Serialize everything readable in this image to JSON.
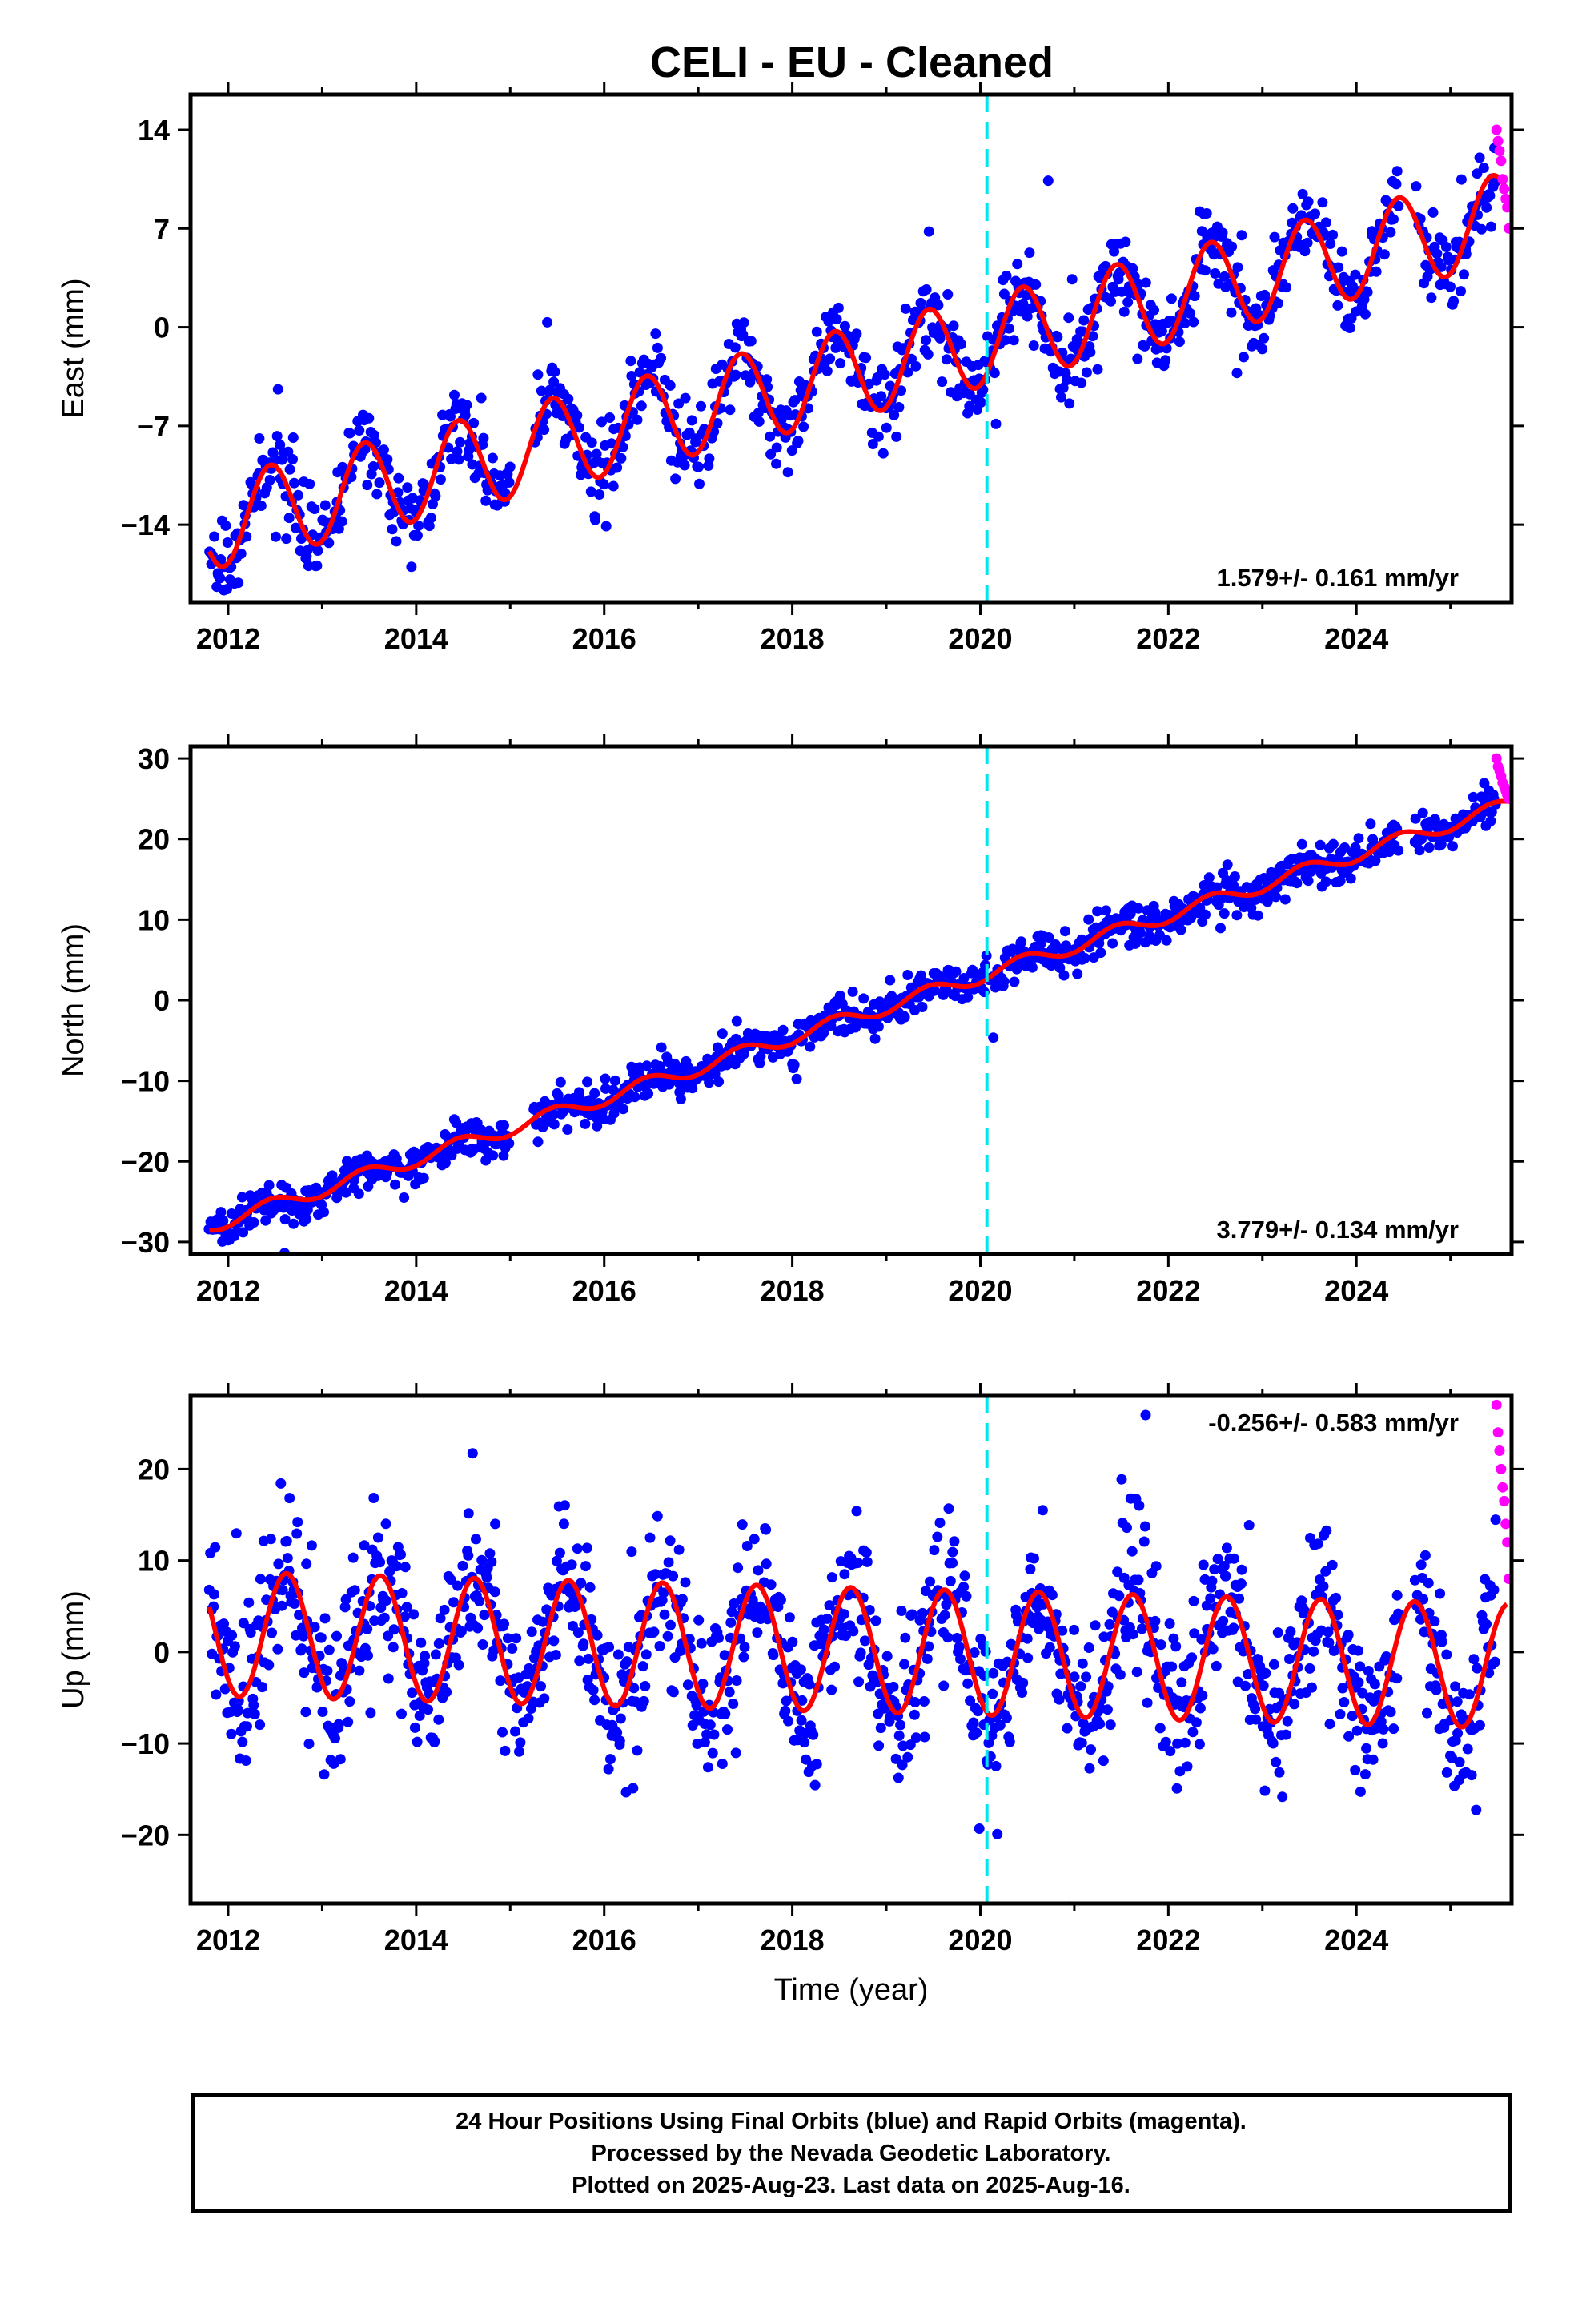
{
  "chart_data": [
    {
      "type": "scatter",
      "title": "CELI  - EU - Cleaned",
      "ylabel": "East (mm)",
      "xlim": [
        2011.6,
        2025.65
      ],
      "ylim": [
        -19.5,
        16.5
      ],
      "yticks": [
        -14,
        -7,
        0,
        7,
        14
      ],
      "xticks": [
        2012,
        2014,
        2016,
        2018,
        2020,
        2022,
        2024
      ],
      "rate": "1.579+/- 0.161 mm/yr",
      "rate_position": "bottom-right",
      "equipment_change_line": 2020.07,
      "model": {
        "start": 2011.8,
        "end": 2025.6,
        "offset_at_start": -14.0,
        "rate": 1.579,
        "annual_amplitude": 3.2,
        "peak_phase": 0.45
      },
      "series": [
        {
          "name": "Final Orbits",
          "color": "#0000ff",
          "x_range": [
            2011.8,
            2025.48
          ],
          "scatter_sd": 1.4,
          "n": 1100
        },
        {
          "name": "Rapid Orbits",
          "color": "#ff00ff",
          "x_range": [
            2025.49,
            2025.62
          ],
          "y_values": [
            14.0,
            13.2,
            12.5,
            11.8,
            10.5,
            9.8,
            9.1,
            8.5,
            7.0
          ],
          "n": 9
        },
        {
          "name": "Model fit",
          "color": "#ff0000"
        }
      ]
    },
    {
      "type": "scatter",
      "ylabel": "North (mm)",
      "xlim": [
        2011.6,
        2025.65
      ],
      "ylim": [
        -31.5,
        31.5
      ],
      "yticks": [
        -30,
        -20,
        -10,
        0,
        10,
        20,
        30
      ],
      "xticks": [
        2012,
        2014,
        2016,
        2018,
        2020,
        2022,
        2024
      ],
      "rate": "3.779+/- 0.134 mm/yr",
      "rate_position": "bottom-right",
      "equipment_change_line": 2020.07,
      "model": {
        "start": 2011.8,
        "end": 2025.6,
        "offset_at_start": -28.0,
        "rate": 3.779,
        "annual_amplitude": 0.9,
        "peak_phase": 0.45
      },
      "series": [
        {
          "name": "Final Orbits",
          "color": "#0000ff",
          "x_range": [
            2011.8,
            2025.48
          ],
          "scatter_sd": 1.2,
          "n": 1100
        },
        {
          "name": "Rapid Orbits",
          "color": "#ff00ff",
          "x_range": [
            2025.49,
            2025.62
          ],
          "y_values": [
            30.0,
            29.0,
            28.5,
            27.8,
            27.0,
            26.5,
            26.0,
            25.5,
            25.0
          ],
          "n": 9
        },
        {
          "name": "Model fit",
          "color": "#ff0000"
        }
      ]
    },
    {
      "type": "scatter",
      "ylabel": "Up (mm)",
      "xlabel": "Time (year)",
      "xlim": [
        2011.6,
        2025.65
      ],
      "ylim": [
        -27.5,
        28.0
      ],
      "yticks": [
        -20,
        -10,
        0,
        10,
        20
      ],
      "xticks": [
        2012,
        2014,
        2016,
        2018,
        2020,
        2022,
        2024
      ],
      "rate": "-0.256+/- 0.583 mm/yr",
      "rate_position": "top-right",
      "equipment_change_line": 2020.07,
      "model": {
        "start": 2011.8,
        "end": 2025.6,
        "offset_at_start": 2.0,
        "rate": -0.256,
        "annual_amplitude": 6.8,
        "peak_phase": 0.62
      },
      "series": [
        {
          "name": "Final Orbits",
          "color": "#0000ff",
          "x_range": [
            2011.8,
            2025.48
          ],
          "scatter_sd": 4.2,
          "n": 1300
        },
        {
          "name": "Rapid Orbits",
          "color": "#ff00ff",
          "x_range": [
            2025.49,
            2025.62
          ],
          "y_values": [
            27.0,
            24.0,
            22.0,
            20.0,
            18.0,
            16.5,
            14.0,
            12.0,
            8.0
          ],
          "n": 9
        },
        {
          "name": "Model fit",
          "color": "#ff0000"
        }
      ]
    }
  ],
  "footer": {
    "line1": "24 Hour Positions Using Final Orbits (blue) and Rapid Orbits (magenta).",
    "line2": "Processed by the Nevada Geodetic Laboratory.",
    "line3": "Plotted on 2025-Aug-23. Last data on 2025-Aug-16."
  },
  "colors": {
    "final": "#0000ff",
    "rapid": "#ff00ff",
    "model": "#ff0000",
    "equipment_line": "#00e5ee",
    "frame": "#000000"
  }
}
